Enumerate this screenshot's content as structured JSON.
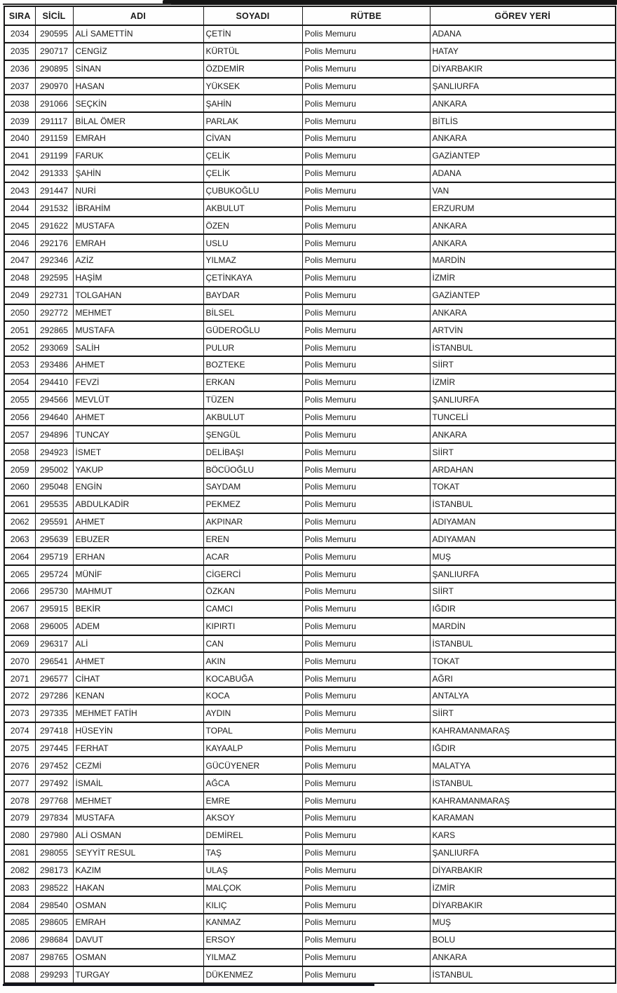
{
  "colors": {
    "background": "#fdfdfc",
    "border": "#161616",
    "text": "#1b1b1b"
  },
  "table": {
    "header": {
      "sira": "SIRA",
      "sicil": "SİCİL",
      "adi": "ADI",
      "soyadi": "SOYADI",
      "rutbe": "RÜTBE",
      "gorev_yeri": "GÖREV YERİ"
    },
    "rows": [
      {
        "sira": "2034",
        "sicil": "290595",
        "adi": "ALİ SAMETTİN",
        "soyadi": "ÇETİN",
        "rutbe": "Polis Memuru",
        "gorev_yeri": "ADANA"
      },
      {
        "sira": "2035",
        "sicil": "290717",
        "adi": "CENGİZ",
        "soyadi": "KÜRTÜL",
        "rutbe": "Polis Memuru",
        "gorev_yeri": "HATAY"
      },
      {
        "sira": "2036",
        "sicil": "290895",
        "adi": "SİNAN",
        "soyadi": "ÖZDEMİR",
        "rutbe": "Polis Memuru",
        "gorev_yeri": "DİYARBAKIR"
      },
      {
        "sira": "2037",
        "sicil": "290970",
        "adi": "HASAN",
        "soyadi": "YÜKSEK",
        "rutbe": "Polis Memuru",
        "gorev_yeri": "ŞANLIURFA"
      },
      {
        "sira": "2038",
        "sicil": "291066",
        "adi": "SEÇKİN",
        "soyadi": "ŞAHİN",
        "rutbe": "Polis Memuru",
        "gorev_yeri": "ANKARA"
      },
      {
        "sira": "2039",
        "sicil": "291117",
        "adi": "BİLAL ÖMER",
        "soyadi": "PARLAK",
        "rutbe": "Polis Memuru",
        "gorev_yeri": "BİTLİS"
      },
      {
        "sira": "2040",
        "sicil": "291159",
        "adi": "EMRAH",
        "soyadi": "CİVAN",
        "rutbe": "Polis Memuru",
        "gorev_yeri": "ANKARA"
      },
      {
        "sira": "2041",
        "sicil": "291199",
        "adi": "FARUK",
        "soyadi": "ÇELİK",
        "rutbe": "Polis Memuru",
        "gorev_yeri": "GAZİANTEP"
      },
      {
        "sira": "2042",
        "sicil": "291333",
        "adi": "ŞAHİN",
        "soyadi": "ÇELİK",
        "rutbe": "Polis Memuru",
        "gorev_yeri": "ADANA"
      },
      {
        "sira": "2043",
        "sicil": "291447",
        "adi": "NURİ",
        "soyadi": "ÇUBUKOĞLU",
        "rutbe": "Polis Memuru",
        "gorev_yeri": "VAN"
      },
      {
        "sira": "2044",
        "sicil": "291532",
        "adi": "İBRAHİM",
        "soyadi": "AKBULUT",
        "rutbe": "Polis Memuru",
        "gorev_yeri": "ERZURUM"
      },
      {
        "sira": "2045",
        "sicil": "291622",
        "adi": "MUSTAFA",
        "soyadi": "ÖZEN",
        "rutbe": "Polis Memuru",
        "gorev_yeri": "ANKARA"
      },
      {
        "sira": "2046",
        "sicil": "292176",
        "adi": "EMRAH",
        "soyadi": "USLU",
        "rutbe": "Polis Memuru",
        "gorev_yeri": "ANKARA"
      },
      {
        "sira": "2047",
        "sicil": "292346",
        "adi": "AZİZ",
        "soyadi": "YILMAZ",
        "rutbe": "Polis Memuru",
        "gorev_yeri": "MARDİN"
      },
      {
        "sira": "2048",
        "sicil": "292595",
        "adi": "HAŞİM",
        "soyadi": "ÇETİNKAYA",
        "rutbe": "Polis Memuru",
        "gorev_yeri": "İZMİR"
      },
      {
        "sira": "2049",
        "sicil": "292731",
        "adi": "TOLGAHAN",
        "soyadi": "BAYDAR",
        "rutbe": "Polis Memuru",
        "gorev_yeri": "GAZİANTEP"
      },
      {
        "sira": "2050",
        "sicil": "292772",
        "adi": "MEHMET",
        "soyadi": "BİLSEL",
        "rutbe": "Polis Memuru",
        "gorev_yeri": "ANKARA"
      },
      {
        "sira": "2051",
        "sicil": "292865",
        "adi": "MUSTAFA",
        "soyadi": "GÜDEROĞLU",
        "rutbe": "Polis Memuru",
        "gorev_yeri": "ARTVİN"
      },
      {
        "sira": "2052",
        "sicil": "293069",
        "adi": "SALİH",
        "soyadi": "PULUR",
        "rutbe": "Polis Memuru",
        "gorev_yeri": "İSTANBUL"
      },
      {
        "sira": "2053",
        "sicil": "293486",
        "adi": "AHMET",
        "soyadi": "BOZTEKE",
        "rutbe": "Polis Memuru",
        "gorev_yeri": "SİİRT"
      },
      {
        "sira": "2054",
        "sicil": "294410",
        "adi": "FEVZİ",
        "soyadi": "ERKAN",
        "rutbe": "Polis Memuru",
        "gorev_yeri": "İZMİR"
      },
      {
        "sira": "2055",
        "sicil": "294566",
        "adi": "MEVLÜT",
        "soyadi": "TÜZEN",
        "rutbe": "Polis Memuru",
        "gorev_yeri": "ŞANLIURFA"
      },
      {
        "sira": "2056",
        "sicil": "294640",
        "adi": "AHMET",
        "soyadi": "AKBULUT",
        "rutbe": "Polis Memuru",
        "gorev_yeri": "TUNCELİ"
      },
      {
        "sira": "2057",
        "sicil": "294896",
        "adi": "TUNCAY",
        "soyadi": "ŞENGÜL",
        "rutbe": "Polis Memuru",
        "gorev_yeri": "ANKARA"
      },
      {
        "sira": "2058",
        "sicil": "294923",
        "adi": "İSMET",
        "soyadi": "DELİBAŞI",
        "rutbe": "Polis Memuru",
        "gorev_yeri": "SİİRT"
      },
      {
        "sira": "2059",
        "sicil": "295002",
        "adi": "YAKUP",
        "soyadi": "BÖCÜOĞLU",
        "rutbe": "Polis Memuru",
        "gorev_yeri": "ARDAHAN"
      },
      {
        "sira": "2060",
        "sicil": "295048",
        "adi": "ENGİN",
        "soyadi": "SAYDAM",
        "rutbe": "Polis Memuru",
        "gorev_yeri": "TOKAT"
      },
      {
        "sira": "2061",
        "sicil": "295535",
        "adi": "ABDULKADİR",
        "soyadi": "PEKMEZ",
        "rutbe": "Polis Memuru",
        "gorev_yeri": "İSTANBUL"
      },
      {
        "sira": "2062",
        "sicil": "295591",
        "adi": "AHMET",
        "soyadi": "AKPINAR",
        "rutbe": "Polis Memuru",
        "gorev_yeri": "ADIYAMAN"
      },
      {
        "sira": "2063",
        "sicil": "295639",
        "adi": "EBUZER",
        "soyadi": "EREN",
        "rutbe": "Polis Memuru",
        "gorev_yeri": "ADIYAMAN"
      },
      {
        "sira": "2064",
        "sicil": "295719",
        "adi": "ERHAN",
        "soyadi": "ACAR",
        "rutbe": "Polis Memuru",
        "gorev_yeri": "MUŞ"
      },
      {
        "sira": "2065",
        "sicil": "295724",
        "adi": "MÜNİF",
        "soyadi": "CİGERCİ",
        "rutbe": "Polis Memuru",
        "gorev_yeri": "ŞANLIURFA"
      },
      {
        "sira": "2066",
        "sicil": "295730",
        "adi": "MAHMUT",
        "soyadi": "ÖZKAN",
        "rutbe": "Polis Memuru",
        "gorev_yeri": "SİİRT"
      },
      {
        "sira": "2067",
        "sicil": "295915",
        "adi": "BEKİR",
        "soyadi": "CAMCI",
        "rutbe": "Polis Memuru",
        "gorev_yeri": "IĞDIR"
      },
      {
        "sira": "2068",
        "sicil": "296005",
        "adi": "ADEM",
        "soyadi": "KIPIRTI",
        "rutbe": "Polis Memuru",
        "gorev_yeri": "MARDİN"
      },
      {
        "sira": "2069",
        "sicil": "296317",
        "adi": "ALİ",
        "soyadi": "CAN",
        "rutbe": "Polis Memuru",
        "gorev_yeri": "İSTANBUL"
      },
      {
        "sira": "2070",
        "sicil": "296541",
        "adi": "AHMET",
        "soyadi": "AKIN",
        "rutbe": "Polis Memuru",
        "gorev_yeri": "TOKAT"
      },
      {
        "sira": "2071",
        "sicil": "296577",
        "adi": "CİHAT",
        "soyadi": "KOCABUĞA",
        "rutbe": "Polis Memuru",
        "gorev_yeri": "AĞRI"
      },
      {
        "sira": "2072",
        "sicil": "297286",
        "adi": "KENAN",
        "soyadi": "KOCA",
        "rutbe": "Polis Memuru",
        "gorev_yeri": "ANTALYA"
      },
      {
        "sira": "2073",
        "sicil": "297335",
        "adi": "MEHMET FATİH",
        "soyadi": "AYDIN",
        "rutbe": "Polis Memuru",
        "gorev_yeri": "SİİRT"
      },
      {
        "sira": "2074",
        "sicil": "297418",
        "adi": "HÜSEYİN",
        "soyadi": "TOPAL",
        "rutbe": "Polis Memuru",
        "gorev_yeri": "KAHRAMANMARAŞ"
      },
      {
        "sira": "2075",
        "sicil": "297445",
        "adi": "FERHAT",
        "soyadi": "KAYAALP",
        "rutbe": "Polis Memuru",
        "gorev_yeri": "IĞDIR"
      },
      {
        "sira": "2076",
        "sicil": "297452",
        "adi": "CEZMİ",
        "soyadi": "GÜCÜYENER",
        "rutbe": "Polis Memuru",
        "gorev_yeri": "MALATYA"
      },
      {
        "sira": "2077",
        "sicil": "297492",
        "adi": "İSMAİL",
        "soyadi": "AĞCA",
        "rutbe": "Polis Memuru",
        "gorev_yeri": "İSTANBUL"
      },
      {
        "sira": "2078",
        "sicil": "297768",
        "adi": "MEHMET",
        "soyadi": "EMRE",
        "rutbe": "Polis Memuru",
        "gorev_yeri": "KAHRAMANMARAŞ"
      },
      {
        "sira": "2079",
        "sicil": "297834",
        "adi": "MUSTAFA",
        "soyadi": "AKSOY",
        "rutbe": "Polis Memuru",
        "gorev_yeri": "KARAMAN"
      },
      {
        "sira": "2080",
        "sicil": "297980",
        "adi": "ALİ OSMAN",
        "soyadi": "DEMİREL",
        "rutbe": "Polis Memuru",
        "gorev_yeri": "KARS"
      },
      {
        "sira": "2081",
        "sicil": "298055",
        "adi": "SEYYİT RESUL",
        "soyadi": "TAŞ",
        "rutbe": "Polis Memuru",
        "gorev_yeri": "ŞANLIURFA"
      },
      {
        "sira": "2082",
        "sicil": "298173",
        "adi": "KAZIM",
        "soyadi": "ULAŞ",
        "rutbe": "Polis Memuru",
        "gorev_yeri": "DİYARBAKIR"
      },
      {
        "sira": "2083",
        "sicil": "298522",
        "adi": "HAKAN",
        "soyadi": "MALÇOK",
        "rutbe": "Polis Memuru",
        "gorev_yeri": "İZMİR"
      },
      {
        "sira": "2084",
        "sicil": "298540",
        "adi": "OSMAN",
        "soyadi": "KILIÇ",
        "rutbe": "Polis Memuru",
        "gorev_yeri": "DİYARBAKIR"
      },
      {
        "sira": "2085",
        "sicil": "298605",
        "adi": "EMRAH",
        "soyadi": "KANMAZ",
        "rutbe": "Polis Memuru",
        "gorev_yeri": "MUŞ"
      },
      {
        "sira": "2086",
        "sicil": "298684",
        "adi": "DAVUT",
        "soyadi": "ERSOY",
        "rutbe": "Polis Memuru",
        "gorev_yeri": "BOLU"
      },
      {
        "sira": "2087",
        "sicil": "298765",
        "adi": "OSMAN",
        "soyadi": "YILMAZ",
        "rutbe": "Polis Memuru",
        "gorev_yeri": "ANKARA"
      },
      {
        "sira": "2088",
        "sicil": "299293",
        "adi": "TURGAY",
        "soyadi": "DÜKENMEZ",
        "rutbe": "Polis Memuru",
        "gorev_yeri": "İSTANBUL"
      }
    ]
  }
}
